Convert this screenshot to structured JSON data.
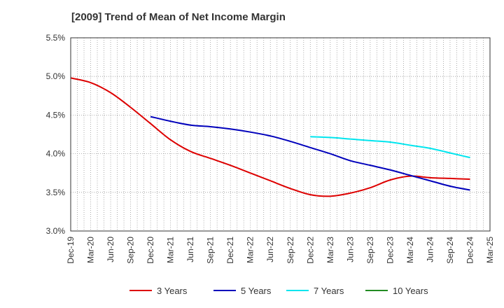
{
  "chart_data": {
    "type": "line",
    "title": "[2009]  Trend of Mean of Net Income Margin",
    "xlabel": "",
    "ylabel": "",
    "x": [
      "Dec-19",
      "Mar-20",
      "Jun-20",
      "Sep-20",
      "Dec-20",
      "Mar-21",
      "Jun-21",
      "Sep-21",
      "Dec-21",
      "Mar-22",
      "Jun-22",
      "Sep-22",
      "Dec-22",
      "Mar-23",
      "Jun-23",
      "Sep-23",
      "Dec-23",
      "Mar-24",
      "Jun-24",
      "Sep-24",
      "Dec-24",
      "Mar-25"
    ],
    "ylim": [
      3.0,
      5.5
    ],
    "yticks": [
      3.0,
      3.5,
      4.0,
      4.5,
      5.0,
      5.5
    ],
    "ytick_labels": [
      "3.0%",
      "3.5%",
      "4.0%",
      "4.5%",
      "5.0%",
      "5.5%"
    ],
    "grid": true,
    "legend_position": "bottom",
    "series": [
      {
        "name": "3 Years",
        "color": "#dd0000",
        "values": [
          4.98,
          4.92,
          4.79,
          4.6,
          4.39,
          4.18,
          4.03,
          3.94,
          3.85,
          3.75,
          3.65,
          3.55,
          3.47,
          3.45,
          3.49,
          3.56,
          3.66,
          3.71,
          3.69,
          3.68,
          3.67,
          null
        ]
      },
      {
        "name": "5 Years",
        "color": "#0000bb",
        "values": [
          null,
          null,
          null,
          null,
          4.48,
          4.42,
          4.37,
          4.35,
          4.32,
          4.28,
          4.23,
          4.16,
          4.08,
          4.0,
          3.91,
          3.85,
          3.79,
          3.72,
          3.65,
          3.58,
          3.53,
          null
        ]
      },
      {
        "name": "7 Years",
        "color": "#00e5ee",
        "values": [
          null,
          null,
          null,
          null,
          null,
          null,
          null,
          null,
          null,
          null,
          null,
          null,
          4.22,
          4.21,
          4.19,
          4.17,
          4.15,
          4.11,
          4.07,
          4.01,
          3.95,
          null
        ]
      },
      {
        "name": "10 Years",
        "color": "#228b22",
        "values": [
          null,
          null,
          null,
          null,
          null,
          null,
          null,
          null,
          null,
          null,
          null,
          null,
          null,
          null,
          null,
          null,
          null,
          null,
          null,
          null,
          null,
          null
        ]
      }
    ]
  }
}
